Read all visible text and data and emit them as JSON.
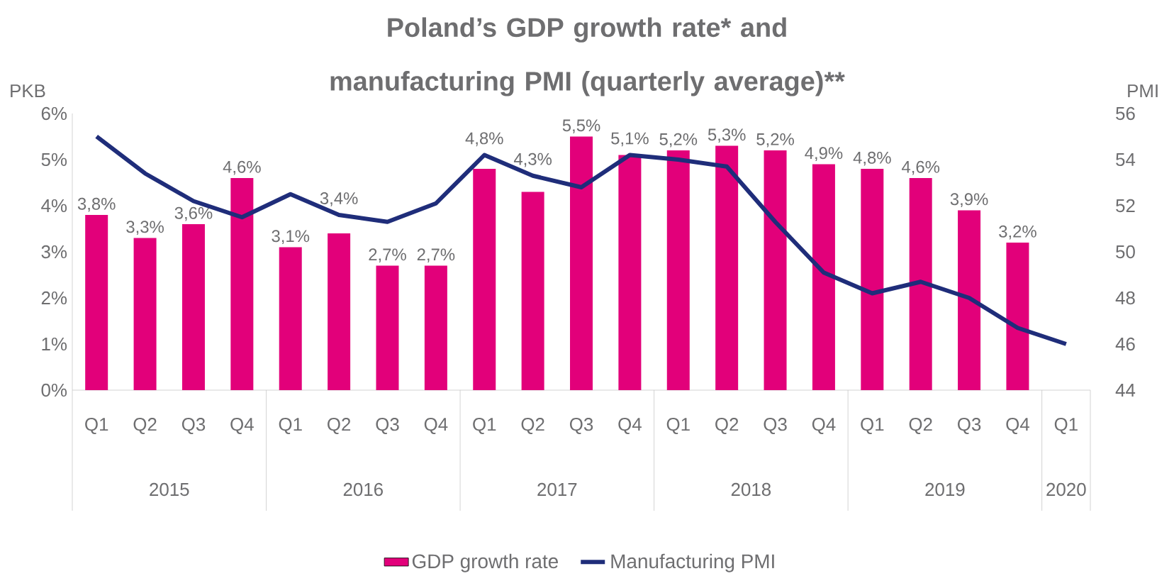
{
  "chart_data": {
    "type": "bar",
    "title": "Poland’s GDP growth rate* and manufacturing PMI (quarterly average)**",
    "ylabel": "PKB",
    "y2label": "PMI",
    "categories": [
      "Q1",
      "Q2",
      "Q3",
      "Q4",
      "Q1",
      "Q2",
      "Q3",
      "Q4",
      "Q1",
      "Q2",
      "Q3",
      "Q4",
      "Q1",
      "Q2",
      "Q3",
      "Q4",
      "Q1",
      "Q2",
      "Q3",
      "Q4",
      "Q1"
    ],
    "annotations": [
      "2015",
      "2016",
      "2017",
      "2018",
      "2019",
      "2020"
    ],
    "series": [
      {
        "name": "GDP growth rate",
        "color": "#e2007a",
        "values": [
          3.8,
          3.3,
          3.6,
          4.6,
          3.1,
          3.4,
          2.7,
          2.7,
          4.8,
          4.3,
          5.5,
          5.1,
          5.2,
          5.3,
          5.2,
          4.9,
          4.8,
          4.6,
          3.9,
          3.2,
          null
        ],
        "value_labels": [
          "3,8%",
          "3,3%",
          "3,6%",
          "4,6%",
          "3,1%",
          "3,4%",
          "2,7%",
          "2,7%",
          "4,8%",
          "4,3%",
          "5,5%",
          "5,1%",
          "5,2%",
          "5,3%",
          "5,2%",
          "4,9%",
          "4,8%",
          "4,6%",
          "3,9%",
          "3,2%",
          null
        ]
      },
      {
        "name": "Manufacturing PMI",
        "type": "line",
        "axis": "y2",
        "color": "#1f2d7a",
        "values": [
          55.0,
          53.4,
          52.2,
          51.5,
          52.5,
          51.6,
          51.3,
          52.1,
          54.2,
          53.3,
          52.8,
          54.2,
          54.0,
          53.7,
          51.3,
          49.1,
          48.2,
          48.7,
          48.0,
          46.7,
          46.0
        ]
      }
    ],
    "ylim": [
      0,
      6
    ],
    "yticks": [
      {
        "value": 0,
        "label": "0%"
      },
      {
        "value": 1,
        "label": "1%"
      },
      {
        "value": 2,
        "label": "2%"
      },
      {
        "value": 3,
        "label": "3%"
      },
      {
        "value": 4,
        "label": "4%"
      },
      {
        "value": 5,
        "label": "5%"
      },
      {
        "value": 6,
        "label": "6%"
      }
    ],
    "y2lim": [
      44,
      56
    ],
    "y2ticks": [
      44,
      46,
      48,
      50,
      52,
      54,
      56
    ],
    "grid": false,
    "legend": "bottom"
  }
}
